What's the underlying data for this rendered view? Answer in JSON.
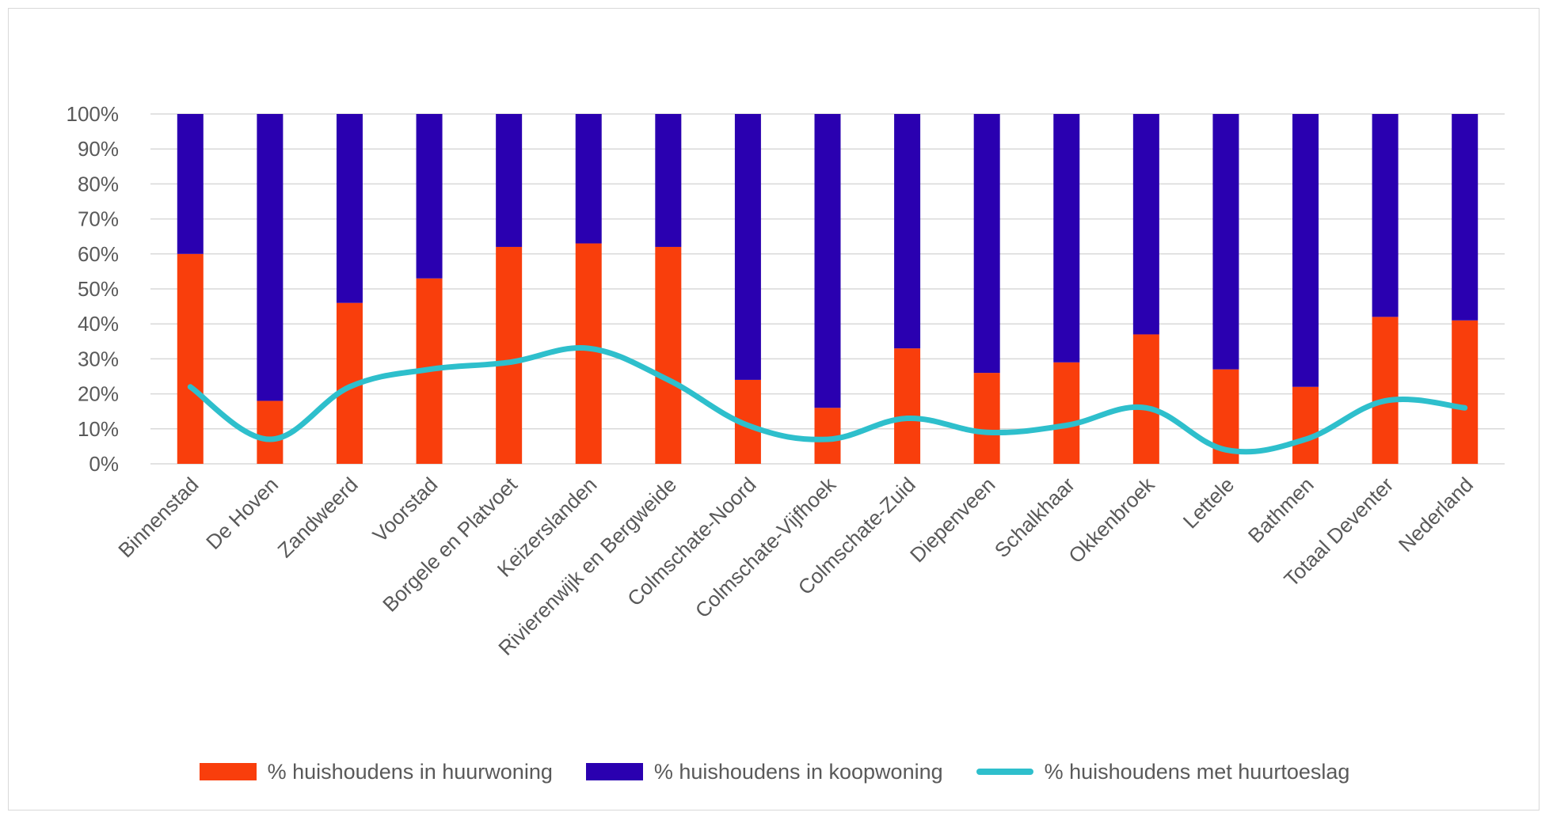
{
  "chart_data": {
    "type": "bar",
    "stacked": true,
    "categories": [
      "Binnenstad",
      "De Hoven",
      "Zandweerd",
      "Voorstad",
      "Borgele en Platvoet",
      "Keizerslanden",
      "Rivierenwijk en Bergweide",
      "Colmschate-Noord",
      "Colmschate-Vijfhoek",
      "Colmschate-Zuid",
      "Diepenveen",
      "Schalkhaar",
      "Okkenbroek",
      "Lettele",
      "Bathmen",
      "Totaal Deventer",
      "Nederland"
    ],
    "series": [
      {
        "name": "% huishoudens in huurwoning",
        "type": "bar",
        "color": "#f93e0c",
        "values": [
          60,
          18,
          46,
          53,
          62,
          63,
          62,
          24,
          16,
          33,
          26,
          29,
          37,
          27,
          22,
          42,
          41
        ]
      },
      {
        "name": "% huishoudens in koopwoning",
        "type": "bar",
        "color": "#2a00b0",
        "values": [
          40,
          82,
          54,
          47,
          38,
          37,
          38,
          76,
          84,
          67,
          74,
          71,
          63,
          73,
          78,
          58,
          59
        ]
      },
      {
        "name": "% huishoudens met huurtoeslag",
        "type": "line",
        "color": "#2ebfcc",
        "values": [
          22,
          7,
          22,
          27,
          29,
          33,
          24,
          11,
          7,
          13,
          9,
          11,
          16,
          4,
          7,
          18,
          16
        ]
      }
    ],
    "yticks": [
      "0%",
      "10%",
      "20%",
      "30%",
      "40%",
      "50%",
      "60%",
      "70%",
      "80%",
      "90%",
      "100%"
    ],
    "ylim": [
      0,
      100
    ],
    "title": "",
    "xlabel": "",
    "ylabel": "",
    "grid": true,
    "legend_position": "bottom"
  }
}
